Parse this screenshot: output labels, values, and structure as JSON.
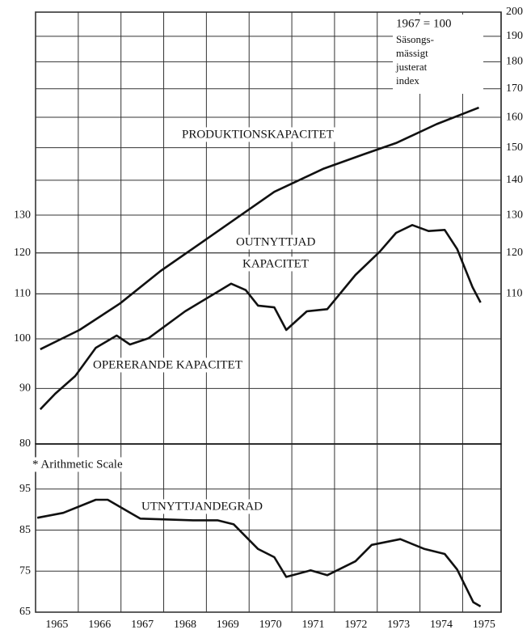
{
  "chart_data": [
    {
      "type": "line",
      "yscale": "log",
      "xlim": [
        1965,
        1975.9
      ],
      "ylim": [
        80,
        200
      ],
      "yticks": [
        80,
        90,
        100,
        110,
        120,
        130
      ],
      "y2lim": [
        80,
        200
      ],
      "y2ticks": [
        110,
        120,
        130,
        140,
        150,
        160,
        170,
        180,
        190,
        200
      ],
      "grid": true,
      "annotations": [
        "1967 = 100",
        "Säsongs-",
        "mässigt",
        "justerat",
        "index",
        "OUTNYTTJAD",
        "KAPACITET"
      ],
      "series": [
        {
          "name": "PRODUKTIONSKAPACITET",
          "color": "#111111",
          "x": [
            1965.11,
            1966.03,
            1966.98,
            1967.93,
            1968.88,
            1969.83,
            1970.59,
            1971.73,
            1972.68,
            1973.44,
            1974.39,
            1975.38
          ],
          "values": [
            97.8,
            101.9,
            107.8,
            115.5,
            122.6,
            130.2,
            136.6,
            143.4,
            147.9,
            151.5,
            157.7,
            163.3
          ]
        },
        {
          "name": "OPERERANDE KAPACITET",
          "color": "#111111",
          "x": [
            1965.11,
            1965.46,
            1965.93,
            1966.41,
            1966.9,
            1967.21,
            1967.64,
            1968.5,
            1969.58,
            1969.92,
            1970.21,
            1970.59,
            1970.87,
            1971.35,
            1971.83,
            1972.49,
            1973.06,
            1973.44,
            1973.82,
            1974.2,
            1974.58,
            1974.87,
            1975.23,
            1975.42
          ],
          "values": [
            86.1,
            89.0,
            92.4,
            98.1,
            100.7,
            98.8,
            100.1,
            106.0,
            112.4,
            110.9,
            107.3,
            106.9,
            101.9,
            106.0,
            106.5,
            114.5,
            120.3,
            125.2,
            127.3,
            125.7,
            126.0,
            121.0,
            111.6,
            108.0
          ]
        }
      ]
    },
    {
      "type": "line",
      "xlim": [
        1965,
        1975.9
      ],
      "xticks": [
        1965,
        1966,
        1967,
        1968,
        1969,
        1970,
        1971,
        1972,
        1973,
        1974,
        1975
      ],
      "ylim": [
        65,
        106
      ],
      "yticks": [
        65,
        75,
        85,
        95
      ],
      "grid": true,
      "annotations": [
        "* Arithmetic Scale"
      ],
      "series": [
        {
          "name": "UTNYTTJANDEGRAD",
          "color": "#111111",
          "x": [
            1965.04,
            1965.65,
            1966.41,
            1966.69,
            1967.45,
            1968.69,
            1969.26,
            1969.64,
            1970.21,
            1970.59,
            1970.87,
            1971.44,
            1971.83,
            1972.49,
            1972.87,
            1973.54,
            1974.11,
            1974.58,
            1974.87,
            1975.25,
            1975.42
          ],
          "values": [
            88.0,
            89.2,
            92.4,
            92.4,
            87.8,
            87.4,
            87.4,
            86.4,
            80.4,
            78.4,
            73.6,
            75.2,
            74.0,
            77.4,
            81.4,
            82.8,
            80.4,
            79.2,
            75.4,
            67.4,
            66.4
          ]
        }
      ]
    }
  ]
}
